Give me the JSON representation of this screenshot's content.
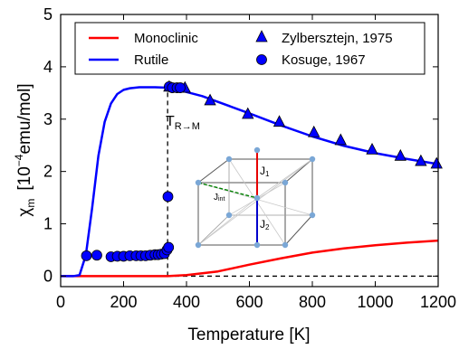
{
  "chart_data": {
    "type": "line",
    "title": "",
    "xlabel": "Temperature [K]",
    "ylabel": {
      "symbol": "χ",
      "subscript": "m",
      "open_bracket": "[",
      "power_base": "10",
      "exponent": "−4",
      "unit": "emu/mol",
      "close_bracket": "]"
    },
    "xlim": [
      0,
      1200
    ],
    "ylim": [
      -0.2,
      5
    ],
    "x_ticks": [
      0,
      200,
      400,
      600,
      800,
      1000,
      1200
    ],
    "y_ticks": [
      0,
      1,
      2,
      3,
      4,
      5
    ],
    "legend_position": "top",
    "colors": {
      "monoclinic": "#ff0000",
      "rutile": "#0000ff",
      "markers": "#0000ff",
      "marker_edge": "#000000",
      "cube_node": "#7aa7d6",
      "j1": "#e60000",
      "j2": "#0000cc",
      "jint": "#008000",
      "cube_edge": "#555555"
    },
    "series": [
      {
        "name": "Monoclinic",
        "style": "line",
        "color": "#ff0000",
        "x": [
          0,
          100,
          200,
          300,
          340,
          400,
          500,
          600,
          700,
          800,
          900,
          1000,
          1100,
          1200
        ],
        "y": [
          0,
          0,
          0,
          0,
          0,
          0.02,
          0.09,
          0.22,
          0.34,
          0.45,
          0.53,
          0.59,
          0.64,
          0.68
        ]
      },
      {
        "name": "Rutile",
        "style": "line",
        "color": "#0000ff",
        "x": [
          0,
          40,
          60,
          80,
          100,
          120,
          140,
          160,
          180,
          200,
          220,
          250,
          280,
          300,
          340,
          380,
          450,
          500,
          600,
          700,
          800,
          900,
          1000,
          1100,
          1200
        ],
        "y": [
          0,
          0,
          0.02,
          0.4,
          1.3,
          2.3,
          2.95,
          3.3,
          3.48,
          3.56,
          3.59,
          3.61,
          3.61,
          3.61,
          3.6,
          3.55,
          3.44,
          3.33,
          3.11,
          2.88,
          2.67,
          2.49,
          2.35,
          2.24,
          2.14
        ]
      },
      {
        "name": "Zylbersztejn, 1975",
        "style": "triangle",
        "x": [
          345,
          395,
          475,
          595,
          695,
          805,
          890,
          990,
          1080,
          1145,
          1195
        ],
        "y": [
          3.62,
          3.6,
          3.36,
          3.1,
          2.95,
          2.75,
          2.6,
          2.42,
          2.3,
          2.2,
          2.15
        ]
      },
      {
        "name": "Kosuge, 1967",
        "style": "circle",
        "x": [
          82,
          115,
          160,
          180,
          200,
          220,
          240,
          255,
          270,
          285,
          300,
          310,
          320,
          330,
          338,
          341,
          343,
          345,
          355,
          370,
          380
        ],
        "y": [
          0.39,
          0.4,
          0.37,
          0.38,
          0.38,
          0.39,
          0.39,
          0.39,
          0.39,
          0.4,
          0.41,
          0.41,
          0.42,
          0.43,
          0.5,
          1.52,
          0.55,
          3.62,
          3.6,
          3.6,
          3.6
        ]
      }
    ],
    "reference_lines": [
      {
        "orientation": "vertical",
        "x": 340,
        "from_y": 0,
        "to_y": 3.6,
        "style": "dashed"
      },
      {
        "orientation": "horizontal",
        "y": 0,
        "from_x": 0,
        "to_x": 1200,
        "style": "dashed"
      }
    ],
    "annotations": {
      "transition": {
        "main": "T",
        "sub": "R→M"
      },
      "inset_labels": {
        "j1": "J",
        "j1_sub": "1",
        "j2": "J",
        "j2_sub": "2",
        "jint": "J",
        "jint_sub": "int"
      }
    }
  }
}
